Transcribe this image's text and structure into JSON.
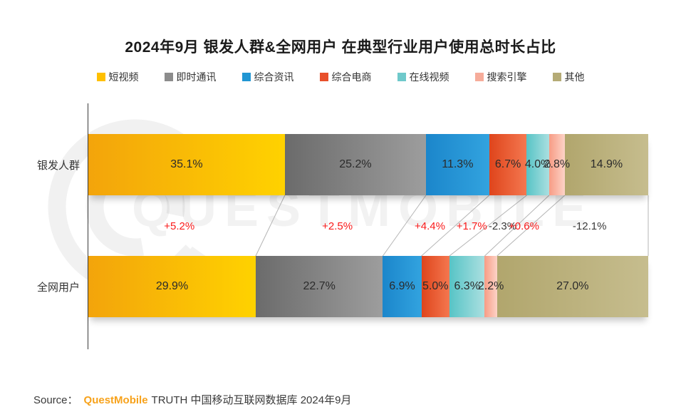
{
  "title": "2024年9月 银发人群&全网用户 在典型行业用户使用总时长占比",
  "chart_data": {
    "type": "bar",
    "stacked": true,
    "orientation": "horizontal",
    "title": "2024年9月 银发人群&全网用户 在典型行业用户使用总时长占比",
    "categories": [
      "短视频",
      "即时通讯",
      "综合资讯",
      "综合电商",
      "在线视频",
      "搜索引擎",
      "其他"
    ],
    "series": [
      {
        "name": "银发人群",
        "values": [
          35.1,
          25.2,
          11.3,
          6.7,
          4.0,
          2.8,
          14.9
        ]
      },
      {
        "name": "全网用户",
        "values": [
          29.9,
          22.7,
          6.9,
          5.0,
          6.3,
          2.2,
          27.0
        ]
      }
    ],
    "diff_labels": [
      "+5.2%",
      "+2.5%",
      "+4.4%",
      "+1.7%",
      "-2.3%",
      "+0.6%",
      "-12.1%"
    ],
    "value_suffix": "%",
    "xlim": [
      0,
      100
    ],
    "legend_position": "top",
    "grid": false,
    "colors": [
      {
        "name": "短视频",
        "from": "#F3A40B",
        "to": "#FFD200",
        "swatch": "#FFC000"
      },
      {
        "name": "即时通讯",
        "from": "#6B6B6B",
        "to": "#9D9D9D",
        "swatch": "#8C8C8C"
      },
      {
        "name": "综合资讯",
        "from": "#1B86CB",
        "to": "#32A3DF",
        "swatch": "#2196D3"
      },
      {
        "name": "综合电商",
        "from": "#DF451C",
        "to": "#F4774F",
        "swatch": "#E8502B"
      },
      {
        "name": "在线视频",
        "from": "#57C4C6",
        "to": "#AADFE0",
        "swatch": "#6FC9CB"
      },
      {
        "name": "搜索引擎",
        "from": "#F79C85",
        "to": "#FDD3C7",
        "swatch": "#F6AC9A"
      },
      {
        "name": "其他",
        "from": "#B1A66D",
        "to": "#C6BD8E",
        "swatch": "#B5AB76"
      }
    ],
    "diff_colors": {
      "positive": "#FA1B1B",
      "negative": "#3A3A3A"
    }
  },
  "source": {
    "label": "Source：",
    "brand": "QuestMobile",
    "brand_color": "#F7A21B",
    "rest": "TRUTH 中国移动互联网数据库 2024年9月"
  },
  "watermark": {
    "text": "QUESTMOBILE"
  }
}
